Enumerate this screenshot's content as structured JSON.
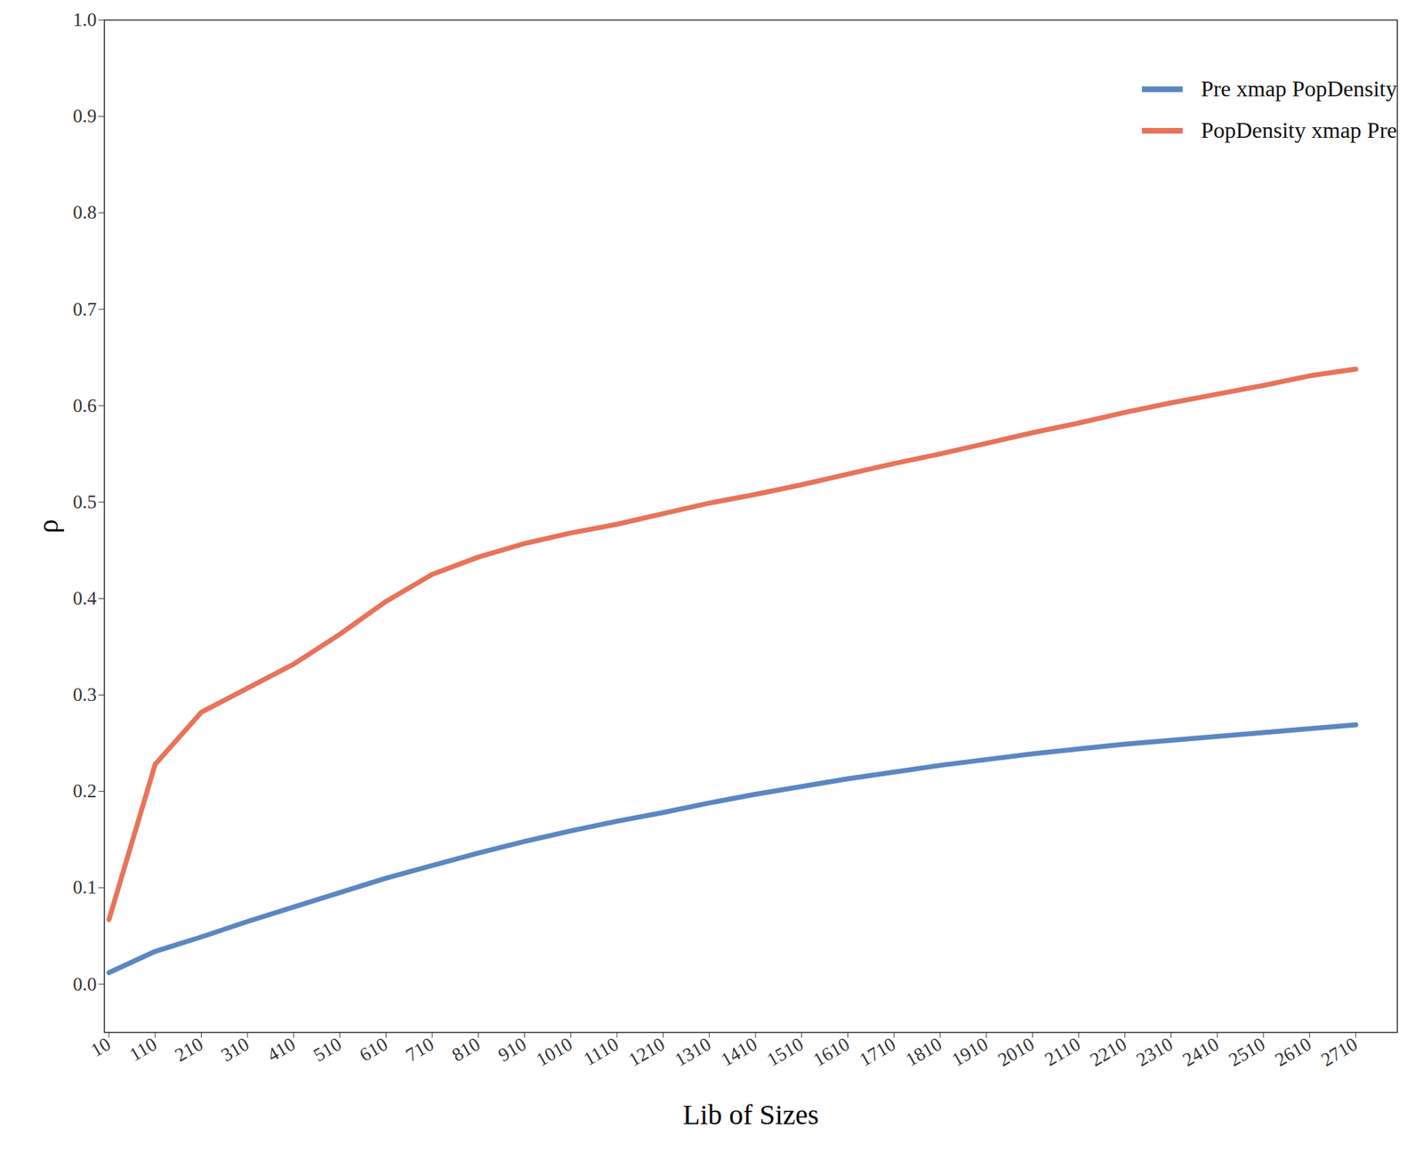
{
  "chart_data": {
    "type": "line",
    "x_label": "Lib of Sizes",
    "y_label": "ρ",
    "x": [
      10,
      110,
      210,
      310,
      410,
      510,
      610,
      710,
      810,
      910,
      1010,
      1110,
      1210,
      1310,
      1410,
      1510,
      1610,
      1710,
      1810,
      1910,
      2010,
      2110,
      2210,
      2310,
      2410,
      2510,
      2610,
      2710
    ],
    "series": [
      {
        "name": "Pre xmap PopDensity",
        "color": "#5b87c2",
        "values": [
          0.012,
          0.034,
          0.049,
          0.065,
          0.08,
          0.095,
          0.11,
          0.123,
          0.136,
          0.148,
          0.159,
          0.169,
          0.178,
          0.188,
          0.197,
          0.205,
          0.213,
          0.22,
          0.227,
          0.233,
          0.239,
          0.244,
          0.249,
          0.253,
          0.257,
          0.261,
          0.265,
          0.269
        ]
      },
      {
        "name": "PopDensity xmap Pre",
        "color": "#e8735a",
        "values": [
          0.067,
          0.228,
          0.282,
          0.307,
          0.332,
          0.363,
          0.397,
          0.425,
          0.443,
          0.457,
          0.468,
          0.477,
          0.488,
          0.499,
          0.508,
          0.518,
          0.529,
          0.54,
          0.55,
          0.561,
          0.572,
          0.582,
          0.593,
          0.603,
          0.612,
          0.621,
          0.631,
          0.638
        ]
      }
    ],
    "xlim": [
      0,
      2800
    ],
    "xticks": [
      10,
      110,
      210,
      310,
      410,
      510,
      610,
      710,
      810,
      910,
      1010,
      1110,
      1210,
      1310,
      1410,
      1510,
      1610,
      1710,
      1810,
      1910,
      2010,
      2110,
      2210,
      2310,
      2410,
      2510,
      2610,
      2710
    ],
    "ylim": [
      -0.05,
      1.0
    ],
    "yticks": [
      {
        "value": 0,
        "label": "0.0"
      },
      0.1,
      0.2,
      0.3,
      0.4,
      0.5,
      0.6,
      0.7,
      0.8,
      0.9,
      {
        "value": 1,
        "label": "1.0"
      }
    ],
    "grid": false,
    "legend": "top-right"
  }
}
